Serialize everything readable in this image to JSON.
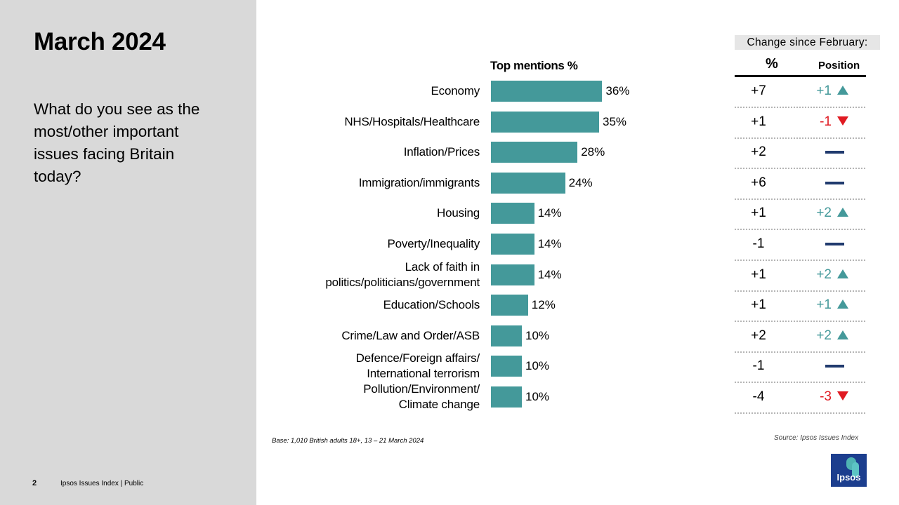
{
  "page": {
    "title": "March 2024",
    "question": "What do you see as the most/other important issues facing Britain today?",
    "page_number": "2",
    "footer": "Ipsos Issues Index | Public",
    "base_note": "Base: 1,010 British adults 18+, 13 – 21 March 2024",
    "source_note": "Source: Ipsos Issues Index",
    "logo_text": "Ipsos"
  },
  "colors": {
    "bar": "#44999a",
    "up": "#44999a",
    "down": "#e01a22",
    "no_change": "#203a6e",
    "sidebar": "#d9d9d9"
  },
  "change_table": {
    "header": "Change since February:",
    "col_pct": "%",
    "col_position": "Position"
  },
  "chart_data": {
    "type": "bar",
    "orientation": "horizontal",
    "title": "Top mentions %",
    "categories": [
      "Economy",
      "NHS/Hospitals/Healthcare",
      "Inflation/Prices",
      "Immigration/immigrants",
      "Housing",
      "Poverty/Inequality",
      "Lack of faith in\npolitics/politicians/government",
      "Education/Schools",
      "Crime/Law and Order/ASB",
      "Defence/Foreign affairs/\nInternational terrorism",
      "Pollution/Environment/\nClimate change"
    ],
    "values": [
      36,
      35,
      28,
      24,
      14,
      14,
      14,
      12,
      10,
      10,
      10
    ],
    "value_labels": [
      "36%",
      "35%",
      "28%",
      "24%",
      "14%",
      "14%",
      "14%",
      "12%",
      "10%",
      "10%",
      "10%"
    ],
    "change_pct": [
      "+7",
      "+1",
      "+2",
      "+6",
      "+1",
      "-1",
      "+1",
      "+1",
      "+2",
      "-1",
      "-4"
    ],
    "change_position": [
      "+1",
      "-1",
      "",
      "",
      "+2",
      "",
      "+2",
      "+1",
      "+2",
      "",
      "-3"
    ],
    "change_direction": [
      "up",
      "down",
      "none",
      "none",
      "up",
      "none",
      "up",
      "up",
      "up",
      "none",
      "down"
    ]
  }
}
